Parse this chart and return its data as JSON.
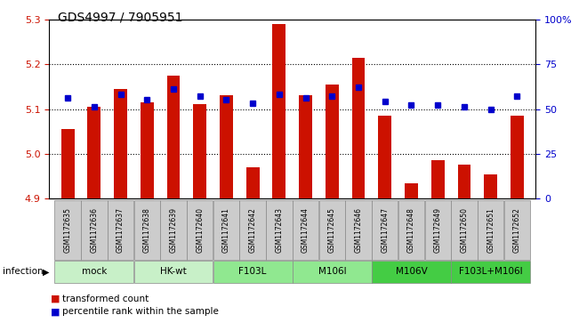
{
  "title": "GDS4997 / 7905951",
  "samples": [
    "GSM1172635",
    "GSM1172636",
    "GSM1172637",
    "GSM1172638",
    "GSM1172639",
    "GSM1172640",
    "GSM1172641",
    "GSM1172642",
    "GSM1172643",
    "GSM1172644",
    "GSM1172645",
    "GSM1172646",
    "GSM1172647",
    "GSM1172648",
    "GSM1172649",
    "GSM1172650",
    "GSM1172651",
    "GSM1172652"
  ],
  "transformed_counts": [
    5.055,
    5.105,
    5.145,
    5.115,
    5.175,
    5.11,
    5.13,
    4.97,
    5.29,
    5.13,
    5.155,
    5.215,
    5.085,
    4.935,
    4.985,
    4.975,
    4.955,
    5.085
  ],
  "percentile_ranks": [
    56,
    51,
    58,
    55,
    61,
    57,
    55,
    53,
    58,
    56,
    57,
    62,
    54,
    52,
    52,
    51,
    50,
    57
  ],
  "group_defs": [
    {
      "label": "mock",
      "indices": [
        0,
        1,
        2
      ],
      "color": "#c8f0c8"
    },
    {
      "label": "HK-wt",
      "indices": [
        3,
        4,
        5
      ],
      "color": "#c8f0c8"
    },
    {
      "label": "F103L",
      "indices": [
        6,
        7,
        8
      ],
      "color": "#90e890"
    },
    {
      "label": "M106I",
      "indices": [
        9,
        10,
        11
      ],
      "color": "#90e890"
    },
    {
      "label": "M106V",
      "indices": [
        12,
        13,
        14
      ],
      "color": "#44cc44"
    },
    {
      "label": "F103L+M106I",
      "indices": [
        15,
        16,
        17
      ],
      "color": "#44cc44"
    }
  ],
  "ylim_left": [
    4.9,
    5.3
  ],
  "ylim_right": [
    0,
    100
  ],
  "yticks_left": [
    4.9,
    5.0,
    5.1,
    5.2,
    5.3
  ],
  "yticks_right": [
    0,
    25,
    50,
    75,
    100
  ],
  "ytick_labels_right": [
    "0",
    "25",
    "50",
    "75",
    "100%"
  ],
  "bar_color": "#cc1100",
  "dot_color": "#0000cc",
  "bar_width": 0.5,
  "infection_label": "infection"
}
